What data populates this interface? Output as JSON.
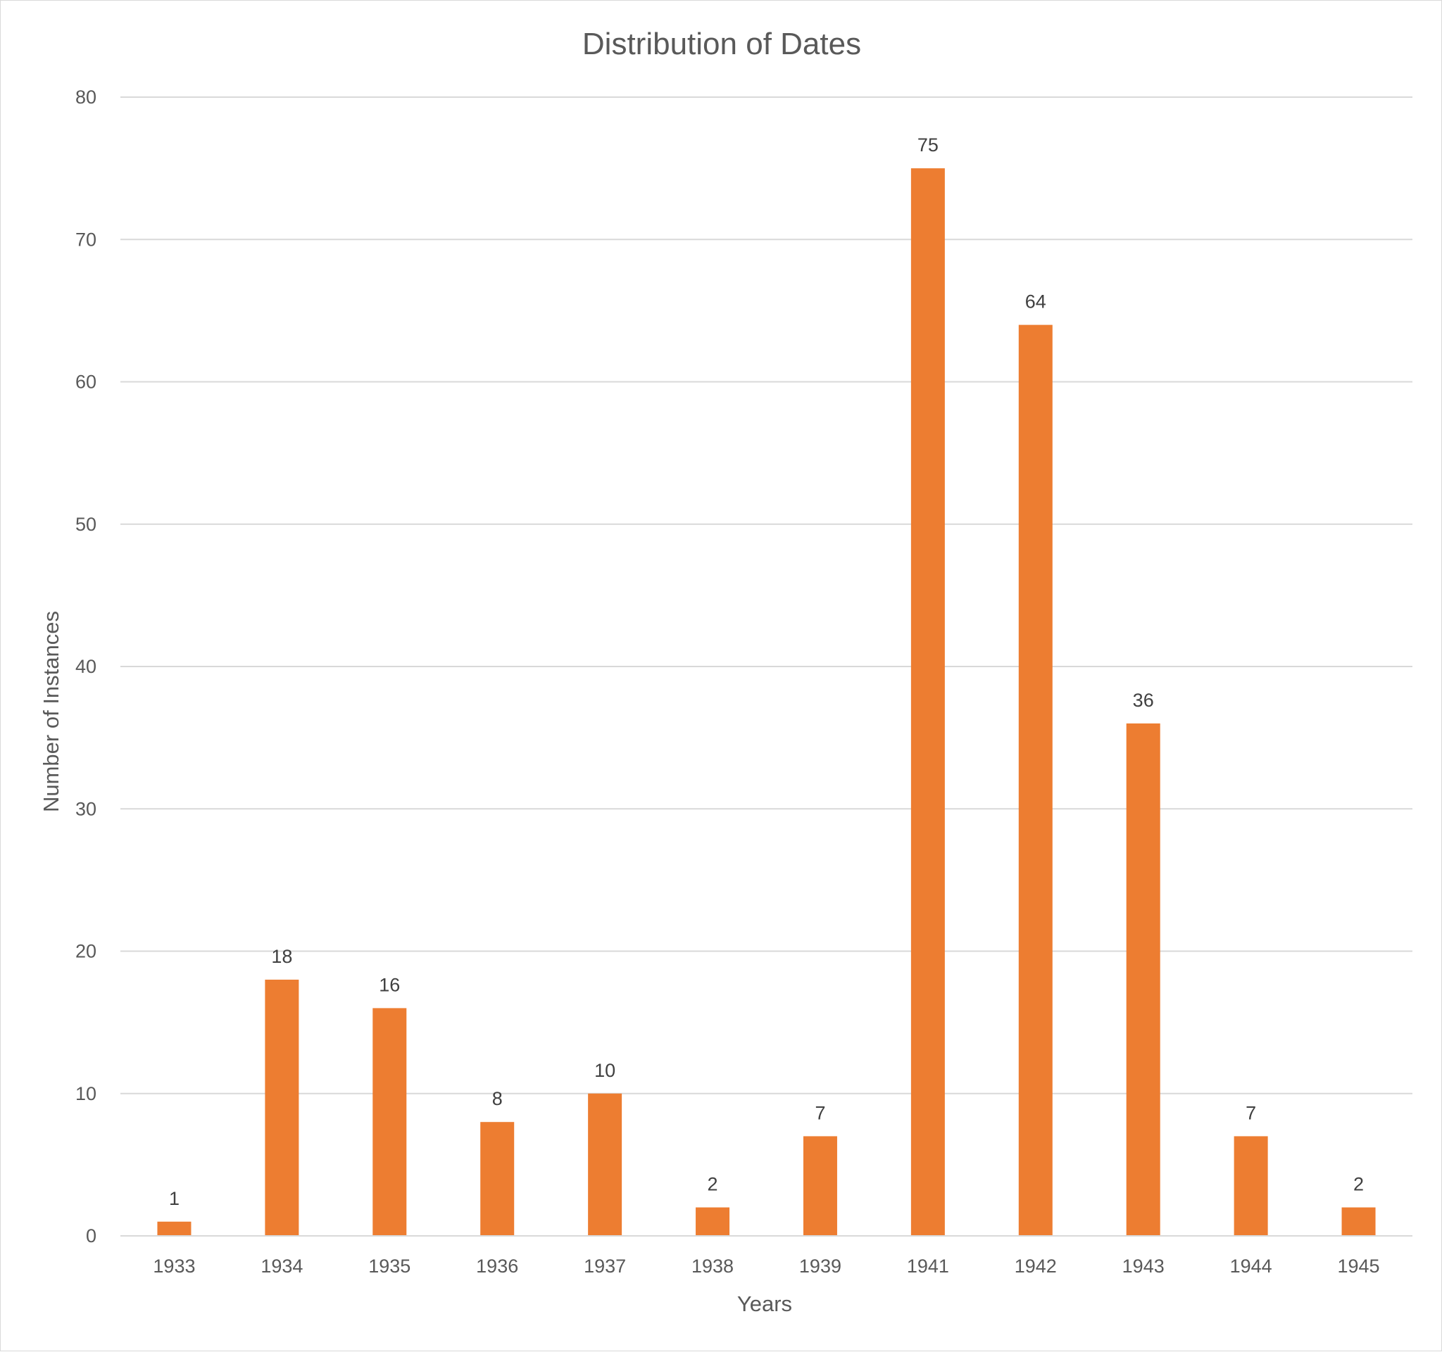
{
  "chart_data": {
    "type": "bar",
    "title": "Distribution of Dates",
    "xlabel": "Years",
    "ylabel": "Number of Instances",
    "categories": [
      "1933",
      "1934",
      "1935",
      "1936",
      "1937",
      "1938",
      "1939",
      "1941",
      "1942",
      "1943",
      "1944",
      "1945"
    ],
    "values": [
      1,
      18,
      16,
      8,
      10,
      2,
      7,
      75,
      64,
      36,
      7,
      2
    ],
    "ylim": [
      0,
      80
    ],
    "yticks": [
      0,
      10,
      20,
      30,
      40,
      50,
      60,
      70,
      80
    ],
    "grid": true,
    "data_labels": true,
    "legend": "none",
    "colors": {
      "bar": "#ED7D31",
      "grid": "#D9D9D9",
      "axis_text": "#595959",
      "data_label": "#404040"
    }
  }
}
